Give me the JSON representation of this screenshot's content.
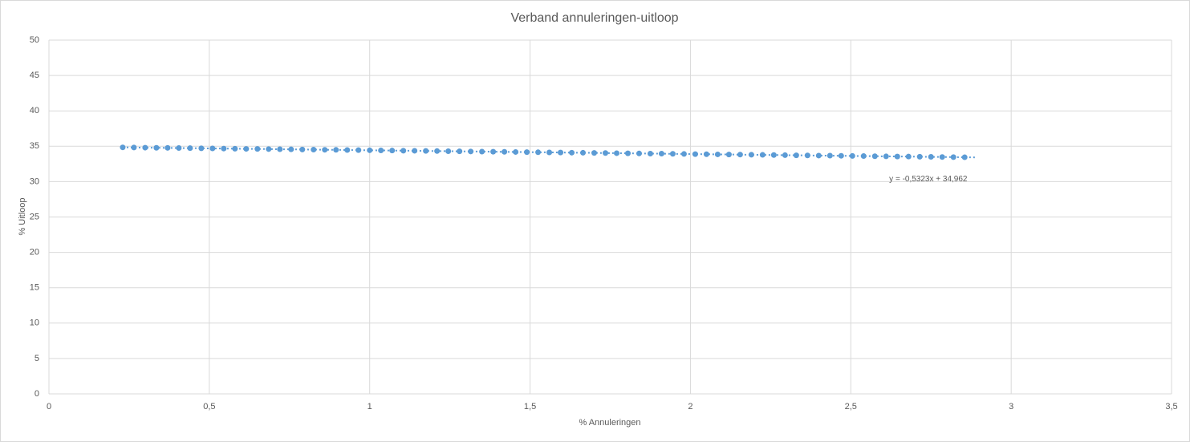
{
  "chart_data": {
    "type": "scatter",
    "title": "Verband annuleringen-uitloop",
    "x_label": "% Annuleringen",
    "y_label": "% Uitloop",
    "series": [
      {
        "color": "#5b9bd5",
        "x": [
          0.23,
          0.265,
          0.3,
          0.335,
          0.37,
          0.405,
          0.44,
          0.475,
          0.51,
          0.545,
          0.58,
          0.615,
          0.65,
          0.685,
          0.72,
          0.755,
          0.79,
          0.825,
          0.86,
          0.895,
          0.93,
          0.965,
          1,
          1.035,
          1.07,
          1.105,
          1.14,
          1.175,
          1.21,
          1.245,
          1.28,
          1.315,
          1.35,
          1.385,
          1.42,
          1.455,
          1.49,
          1.525,
          1.56,
          1.595,
          1.63,
          1.665,
          1.7,
          1.735,
          1.77,
          1.805,
          1.84,
          1.875,
          1.91,
          1.945,
          1.98,
          2.015,
          2.05,
          2.085,
          2.12,
          2.155,
          2.19,
          2.225,
          2.26,
          2.295,
          2.33,
          2.365,
          2.4,
          2.435,
          2.47,
          2.505,
          2.54,
          2.575,
          2.61,
          2.645,
          2.68,
          2.715,
          2.75,
          2.785,
          2.82,
          2.855
        ],
        "values": [
          34.84,
          34.82,
          34.8,
          34.78,
          34.77,
          34.75,
          34.73,
          34.71,
          34.69,
          34.67,
          34.65,
          34.63,
          34.62,
          34.6,
          34.58,
          34.56,
          34.54,
          34.52,
          34.5,
          34.49,
          34.47,
          34.45,
          34.43,
          34.41,
          34.39,
          34.37,
          34.36,
          34.34,
          34.32,
          34.3,
          34.28,
          34.26,
          34.24,
          34.23,
          34.21,
          34.19,
          34.17,
          34.15,
          34.13,
          34.11,
          34.09,
          34.08,
          34.06,
          34.04,
          34.02,
          34.0,
          33.98,
          33.96,
          33.95,
          33.93,
          33.91,
          33.89,
          33.87,
          33.85,
          33.83,
          33.82,
          33.8,
          33.78,
          33.76,
          33.74,
          33.72,
          33.7,
          33.68,
          33.67,
          33.65,
          33.63,
          33.61,
          33.59,
          33.57,
          33.55,
          33.54,
          33.52,
          33.5,
          33.48,
          33.46,
          33.44
        ]
      }
    ],
    "trendline": {
      "slope": -0.5323,
      "intercept": 34.962,
      "label": "y = -0,5323x + 34,962"
    },
    "xlim": [
      0,
      3.5
    ],
    "xticks": [
      0,
      {
        "value": 0.5,
        "label": "0,5"
      },
      1,
      {
        "value": 1.5,
        "label": "1,5"
      },
      2,
      {
        "value": 2.5,
        "label": "2,5"
      },
      3,
      {
        "value": 3.5,
        "label": "3,5"
      }
    ],
    "ylim": [
      0,
      50
    ],
    "yticks": [
      0,
      5,
      10,
      15,
      20,
      25,
      30,
      35,
      40,
      45,
      50
    ],
    "grid": true
  }
}
